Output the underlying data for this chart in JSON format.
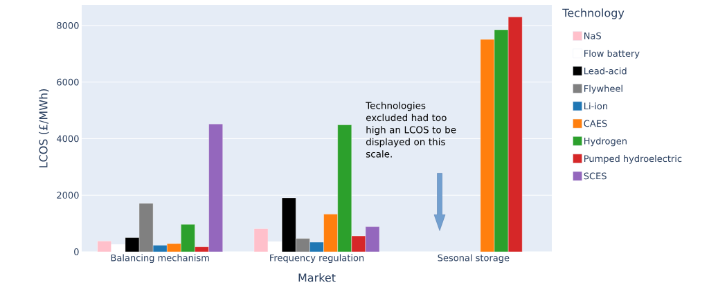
{
  "chart_data": {
    "type": "bar",
    "xlabel": "Market",
    "ylabel": "LCOS (£/MWh)",
    "legend_title": "Technology",
    "legend": "right",
    "grid": "y",
    "categories": [
      "Balancing mechanism",
      "Frequency regulation",
      "Sesonal storage"
    ],
    "ylim": [
      0,
      8730
    ],
    "yticks": [
      0,
      2000,
      4000,
      6000,
      8000
    ],
    "series": [
      {
        "name": "NaS",
        "color": "#ffc0cb",
        "values": [
          380,
          820,
          null
        ]
      },
      {
        "name": "Flow battery",
        "color": "#ffffff",
        "values": [
          260,
          360,
          null
        ]
      },
      {
        "name": "Lead-acid",
        "color": "#000000",
        "values": [
          500,
          1910,
          null
        ]
      },
      {
        "name": "Flywheel",
        "color": "#808080",
        "values": [
          1710,
          470,
          null
        ]
      },
      {
        "name": "Li-ion",
        "color": "#1f77b4",
        "values": [
          230,
          340,
          null
        ]
      },
      {
        "name": "CAES",
        "color": "#ff7f0e",
        "values": [
          290,
          1330,
          7510
        ]
      },
      {
        "name": "Hydrogen",
        "color": "#2ca02c",
        "values": [
          970,
          4490,
          7850
        ]
      },
      {
        "name": "Pumped hydroelectric",
        "color": "#d62728",
        "values": [
          180,
          560,
          8300
        ]
      },
      {
        "name": "SCES",
        "color": "#9467bd",
        "values": [
          4520,
          890,
          null
        ]
      }
    ],
    "annotations": [
      "Technologies excluded had too high an LCOS to be displayed on this scale."
    ]
  }
}
